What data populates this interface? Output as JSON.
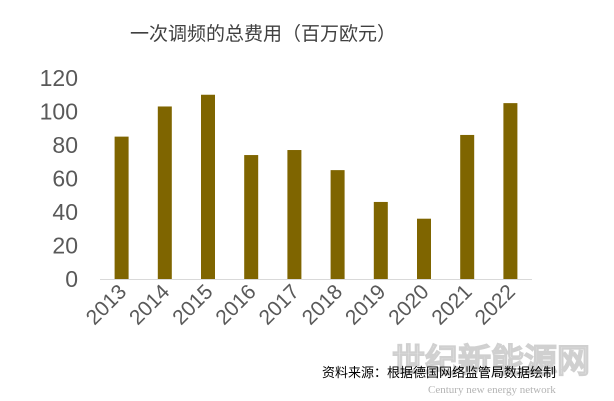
{
  "chart_data": {
    "type": "bar",
    "title": "一次调频的总费用（百万欧元）",
    "xlabel": "",
    "ylabel": "",
    "categories": [
      "2013",
      "2014",
      "2015",
      "2016",
      "2017",
      "2018",
      "2019",
      "2020",
      "2021",
      "2022"
    ],
    "values": [
      85,
      103,
      110,
      74,
      77,
      65,
      46,
      36,
      86,
      105
    ],
    "ylim": [
      0,
      120
    ],
    "yticks": [
      0,
      20,
      40,
      60,
      80,
      100,
      120
    ],
    "grid": false,
    "show_legend": false,
    "bar_color": "#7f6500",
    "axis_color": "#d9d9d9",
    "label_color": "#595959"
  },
  "source": "资料来源：根据德国网络监管局数据绘制",
  "watermark": {
    "cn": "世纪新能源网",
    "en": "Century new energy network"
  }
}
